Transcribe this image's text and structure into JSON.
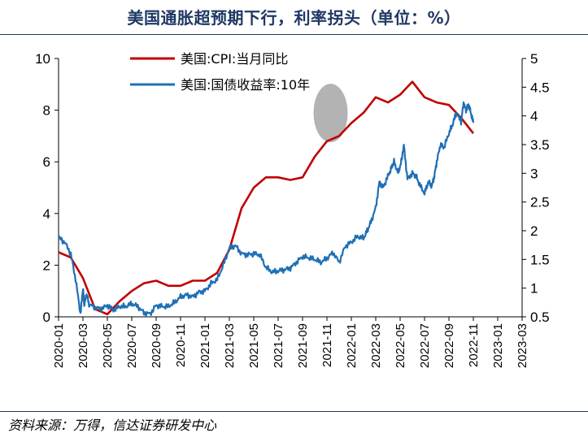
{
  "title": "美国通胀超预期下行，利率拐头（单位：%）",
  "source": "资料来源：万得，信达证券研发中心",
  "colors": {
    "cpi": "#c00000",
    "yield": "#1f6fb5",
    "highlight": "#a6a6a6",
    "title": "#1f3864"
  },
  "chart_data": {
    "type": "line",
    "title": "美国通胀超预期下行，利率拐头（单位：%）",
    "xlabel": "",
    "ylabel": "",
    "x_ticks": [
      "2020-01",
      "2020-03",
      "2020-05",
      "2020-07",
      "2020-09",
      "2020-11",
      "2021-01",
      "2021-03",
      "2021-05",
      "2021-07",
      "2021-09",
      "2021-11",
      "2022-01",
      "2022-03",
      "2022-05",
      "2022-07",
      "2022-09",
      "2022-11",
      "2023-01",
      "2023-03"
    ],
    "ylim_left": [
      0,
      10
    ],
    "yticks_left": [
      "0",
      "2",
      "4",
      "6",
      "8",
      "10"
    ],
    "ylim_right": [
      0.5,
      5
    ],
    "yticks_right": [
      "0.5",
      "1",
      "1.5",
      "2",
      "2.5",
      "3",
      "3.5",
      "4",
      "4.5",
      "5"
    ],
    "legend_position": "top-center",
    "highlight": {
      "shape": "ellipse",
      "x_month": 22.3,
      "y_right": 4.05
    },
    "series": [
      {
        "name": "美国:CPI:当月同比",
        "axis": "left",
        "x_month_index": [
          0,
          1,
          2,
          3,
          4,
          5,
          6,
          7,
          8,
          9,
          10,
          11,
          12,
          13,
          14,
          15,
          16,
          17,
          18,
          19,
          20,
          21,
          22,
          23,
          24,
          25,
          26,
          27,
          28,
          29,
          30,
          31,
          32,
          33,
          34
        ],
        "values": [
          2.5,
          2.3,
          1.5,
          0.3,
          0.1,
          0.6,
          1.0,
          1.3,
          1.4,
          1.2,
          1.2,
          1.4,
          1.4,
          1.7,
          2.6,
          4.2,
          5.0,
          5.4,
          5.4,
          5.3,
          5.4,
          6.2,
          6.8,
          7.0,
          7.5,
          7.9,
          8.5,
          8.3,
          8.6,
          9.1,
          8.5,
          8.3,
          8.2,
          7.7,
          7.1
        ]
      },
      {
        "name": "美国:国债收益率:10年",
        "axis": "right",
        "x_month_index": [
          0,
          0.5,
          1,
          1.4,
          1.8,
          2,
          2.1,
          2.3,
          2.5,
          3,
          3.5,
          4,
          4.5,
          5,
          5.5,
          6,
          6.5,
          7,
          7.5,
          8,
          8.5,
          9,
          9.5,
          10,
          10.5,
          11,
          11.5,
          12,
          12.5,
          13,
          13.5,
          14,
          14.5,
          15,
          15.5,
          16,
          16.5,
          17,
          17.5,
          18,
          18.5,
          19,
          19.5,
          20,
          20.5,
          21,
          21.5,
          22,
          22.5,
          23,
          23.5,
          24,
          24.5,
          25,
          25.3,
          25.6,
          26,
          26.3,
          26.6,
          27,
          27.3,
          27.5,
          27.8,
          28,
          28.3,
          28.6,
          29,
          29.3,
          29.6,
          30,
          30.3,
          30.6,
          30.8,
          31,
          31.3,
          31.6,
          32,
          32.3,
          32.6,
          33,
          33.2,
          33.4,
          33.6,
          33.8,
          34
        ],
        "values": [
          1.88,
          1.8,
          1.6,
          1.15,
          0.55,
          1.0,
          0.7,
          0.9,
          0.72,
          0.66,
          0.64,
          0.7,
          0.62,
          0.68,
          0.68,
          0.73,
          0.68,
          0.57,
          0.55,
          0.7,
          0.68,
          0.68,
          0.75,
          0.85,
          0.88,
          0.85,
          0.93,
          0.95,
          1.08,
          1.15,
          1.4,
          1.7,
          1.74,
          1.6,
          1.58,
          1.6,
          1.58,
          1.36,
          1.28,
          1.3,
          1.32,
          1.35,
          1.45,
          1.55,
          1.53,
          1.5,
          1.45,
          1.52,
          1.62,
          1.45,
          1.73,
          1.8,
          1.9,
          1.87,
          2.0,
          2.15,
          2.4,
          2.85,
          2.75,
          2.95,
          3.1,
          3.2,
          3.02,
          3.1,
          3.48,
          2.9,
          3.0,
          2.95,
          2.8,
          2.65,
          2.85,
          2.78,
          2.95,
          3.2,
          3.5,
          3.45,
          3.7,
          3.85,
          4.05,
          3.9,
          4.22,
          4.1,
          4.2,
          4.05,
          3.88
        ]
      }
    ]
  }
}
